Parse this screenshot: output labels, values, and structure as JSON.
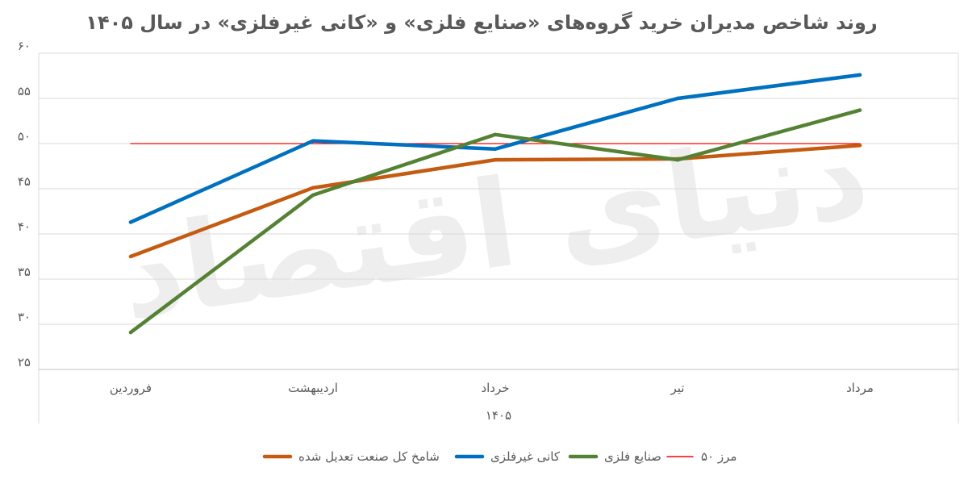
{
  "chart_data": {
    "type": "line",
    "title": "روند شاخص مدیران خرید گروه‌های «صنایع فلزی» و «کانی غیرفلزی» در سال ۱۴۰۵",
    "xlabel": "۱۴۰۵",
    "ylabel": "",
    "watermark": "دنیای اقتصاد",
    "categories": [
      "فروردین",
      "اردیبهشت",
      "خرداد",
      "تیر",
      "مرداد"
    ],
    "ylim": [
      25,
      60
    ],
    "yticks": [
      25,
      30,
      35,
      40,
      45,
      50,
      55,
      60
    ],
    "ytick_labels": [
      "۲۵",
      "۳۰",
      "۳۵",
      "۴۰",
      "۴۵",
      "۵۰",
      "۵۵",
      "۶۰"
    ],
    "grid": true,
    "legend_position": "bottom",
    "series": [
      {
        "name": "شامخ کل صنعت تعدیل شده",
        "color": "#C55A11",
        "values": [
          37.5,
          45.1,
          48.2,
          48.3,
          49.8
        ]
      },
      {
        "name": "کانی غیرفلزی",
        "color": "#0070C0",
        "values": [
          41.3,
          50.3,
          49.4,
          55.0,
          57.6
        ]
      },
      {
        "name": "صنایع فلزی",
        "color": "#548235",
        "values": [
          29.1,
          44.3,
          51.0,
          48.2,
          53.7
        ]
      },
      {
        "name": "مرز ۵۰",
        "color": "#FF0000",
        "values": [
          50,
          50,
          50,
          50,
          50
        ]
      }
    ]
  }
}
